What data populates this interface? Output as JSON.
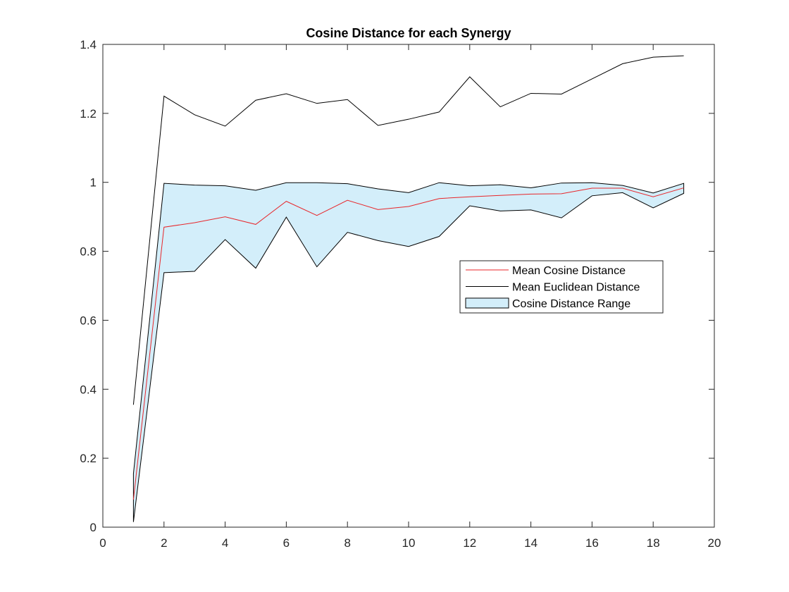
{
  "chart_data": {
    "type": "line",
    "title": "Cosine Distance for each Synergy",
    "xlabel": "",
    "ylabel": "",
    "xlim": [
      0,
      20
    ],
    "ylim": [
      0,
      1.4
    ],
    "xticks": [
      0,
      2,
      4,
      6,
      8,
      10,
      12,
      14,
      16,
      18,
      20
    ],
    "yticks": [
      0,
      0.2,
      0.4,
      0.6,
      0.8,
      1,
      1.2,
      1.4
    ],
    "xtick_labels": [
      "0",
      "2",
      "4",
      "6",
      "8",
      "10",
      "12",
      "14",
      "16",
      "18",
      "20"
    ],
    "ytick_labels": [
      "0",
      "0.2",
      "0.4",
      "0.6",
      "0.8",
      "1",
      "1.2",
      "1.4"
    ],
    "grid": false,
    "legend_position": "center-right",
    "x": [
      1,
      2,
      3,
      4,
      5,
      6,
      7,
      8,
      9,
      10,
      11,
      12,
      13,
      14,
      15,
      16,
      17,
      18,
      19
    ],
    "series": [
      {
        "name": "Mean Cosine Distance",
        "kind": "line",
        "color": "#e8262a",
        "values": [
          0.08,
          0.87,
          0.883,
          0.9,
          0.878,
          0.945,
          0.904,
          0.948,
          0.921,
          0.93,
          0.953,
          0.958,
          0.962,
          0.966,
          0.967,
          0.983,
          0.983,
          0.958,
          0.984
        ]
      },
      {
        "name": "Mean Euclidean Distance",
        "kind": "line",
        "color": "#000000",
        "values": [
          0.355,
          1.25,
          1.196,
          1.163,
          1.238,
          1.257,
          1.229,
          1.24,
          1.165,
          1.183,
          1.204,
          1.306,
          1.219,
          1.258,
          1.256,
          1.3,
          1.344,
          1.363,
          1.367
        ]
      },
      {
        "name": "Cosine Distance Range",
        "kind": "area-range",
        "color": "#d3eefa",
        "edge_color": "#000000",
        "upper": [
          0.155,
          0.997,
          0.992,
          0.99,
          0.977,
          0.999,
          0.999,
          0.996,
          0.981,
          0.97,
          0.999,
          0.99,
          0.993,
          0.984,
          0.998,
          0.999,
          0.991,
          0.969,
          0.997
        ],
        "lower": [
          0.015,
          0.738,
          0.742,
          0.834,
          0.751,
          0.899,
          0.755,
          0.855,
          0.831,
          0.814,
          0.843,
          0.932,
          0.917,
          0.92,
          0.897,
          0.961,
          0.97,
          0.926,
          0.968
        ]
      }
    ]
  }
}
